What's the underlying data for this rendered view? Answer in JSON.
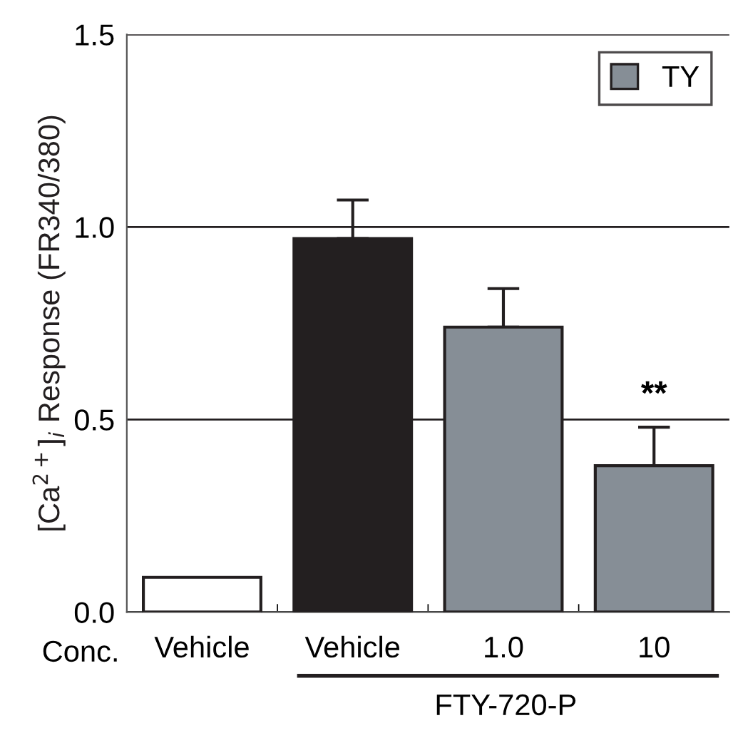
{
  "chart_data": {
    "type": "bar",
    "ylabel": "[Ca$^{2+}$]$_{i}$ Response (FR340/380)",
    "categories": [
      "Vehicle",
      "Vehicle",
      "1.0",
      "10"
    ],
    "series": [
      {
        "color": "#ffffff",
        "values": [
          0.09,
          null,
          null,
          null
        ]
      },
      {
        "color": "#231f20",
        "values": [
          null,
          0.97,
          null,
          null
        ],
        "errors": [
          null,
          0.1,
          null,
          null
        ]
      },
      {
        "name": "TY",
        "color": "#868e96",
        "values": [
          null,
          null,
          0.74,
          0.38
        ],
        "errors": [
          null,
          null,
          0.1,
          0.1
        ]
      }
    ],
    "ylim": [
      0,
      1.5
    ],
    "yticks": [
      {
        "value": 0,
        "label": "0.0"
      },
      {
        "value": 0.5,
        "label": "0.5"
      },
      {
        "value": 1.0,
        "label": "1.0"
      },
      {
        "value": 1.5,
        "label": "1.5"
      }
    ],
    "grid": "y",
    "legend": "top right",
    "annotations": [
      {
        "text": "**",
        "x": "10",
        "y": 0.48
      },
      "Conc.",
      "FTY-720-P"
    ]
  }
}
